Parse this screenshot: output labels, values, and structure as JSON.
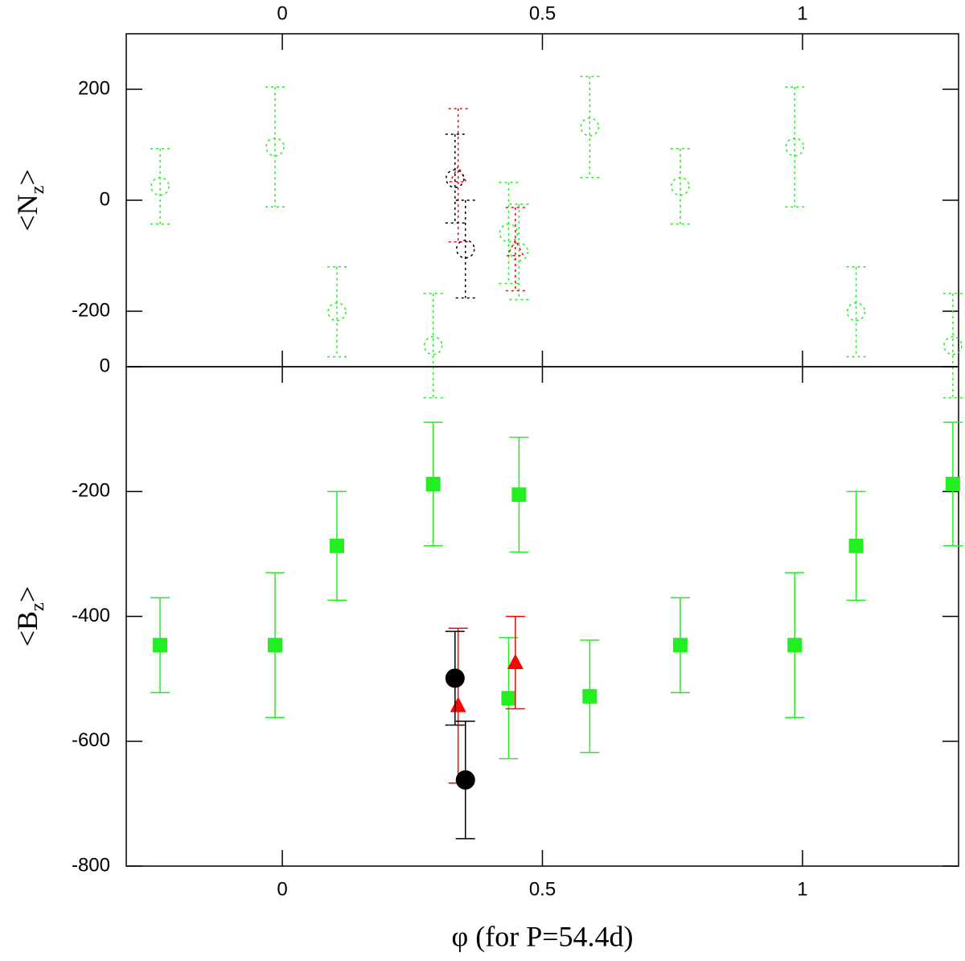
{
  "chart_data": [
    {
      "type": "scatter",
      "ylabel": [
        "<N",
        "z",
        ">"
      ],
      "xlim": [
        -0.3,
        1.3
      ],
      "xticks": [
        0,
        0.5,
        1
      ],
      "xticks_position": "top",
      "ylim": [
        -300,
        300
      ],
      "yticks": [
        -200,
        0,
        200
      ],
      "series": [
        {
          "color": "#22ee22",
          "marker": "circle",
          "filled": false,
          "dotted": true,
          "x": [
            -0.235,
            -0.014,
            0.105,
            0.29,
            0.435,
            0.455,
            0.591,
            0.765,
            0.985,
            1.103,
            1.289
          ],
          "values": [
            25,
            96,
            -201,
            -262,
            -59,
            -93,
            132,
            25,
            96,
            -201,
            -262
          ],
          "errors": [
            68,
            108,
            81,
            94,
            91,
            86,
            91,
            68,
            108,
            81,
            94
          ]
        },
        {
          "color": "#ff0000",
          "marker": "triangle",
          "filled": false,
          "dotted": true,
          "x": [
            0.338,
            0.448
          ],
          "values": [
            45,
            -88
          ],
          "errors": [
            120,
            75
          ]
        },
        {
          "color": "#000000",
          "marker": "circle",
          "filled": false,
          "dotted": true,
          "x": [
            0.332,
            0.352
          ],
          "values": [
            39,
            -88
          ],
          "errors": [
            80,
            88
          ]
        }
      ]
    },
    {
      "type": "scatter",
      "ylabel": [
        "<B",
        "z",
        ">"
      ],
      "xlabel": "φ (for P=54.4d)",
      "xlim": [
        -0.3,
        1.3
      ],
      "xticks": [
        0,
        0.5,
        1
      ],
      "xticks_position": "bottom",
      "ylim": [
        -800,
        0
      ],
      "yticks": [
        -800,
        -600,
        -400,
        -200,
        0
      ],
      "series": [
        {
          "color": "#22ee22",
          "marker": "square",
          "filled": true,
          "dotted": false,
          "x": [
            -0.235,
            -0.014,
            0.105,
            0.29,
            0.455,
            0.435,
            0.591,
            0.765,
            0.985,
            1.103,
            1.289
          ],
          "values": [
            -446,
            -446,
            -287,
            -188,
            -205,
            -531,
            -528,
            -446,
            -446,
            -287,
            -188
          ],
          "errors": [
            76,
            116,
            87,
            99,
            92,
            97,
            90,
            76,
            116,
            87,
            99
          ]
        },
        {
          "color": "#ff0000",
          "marker": "triangle",
          "filled": true,
          "dotted": false,
          "x": [
            0.338,
            0.448
          ],
          "values": [
            -543,
            -474
          ],
          "errors": [
            124,
            74
          ]
        },
        {
          "color": "#000000",
          "marker": "circle",
          "filled": true,
          "dotted": false,
          "x": [
            0.332,
            0.352
          ],
          "values": [
            -499,
            -662
          ],
          "errors": [
            75,
            94
          ]
        }
      ]
    }
  ]
}
